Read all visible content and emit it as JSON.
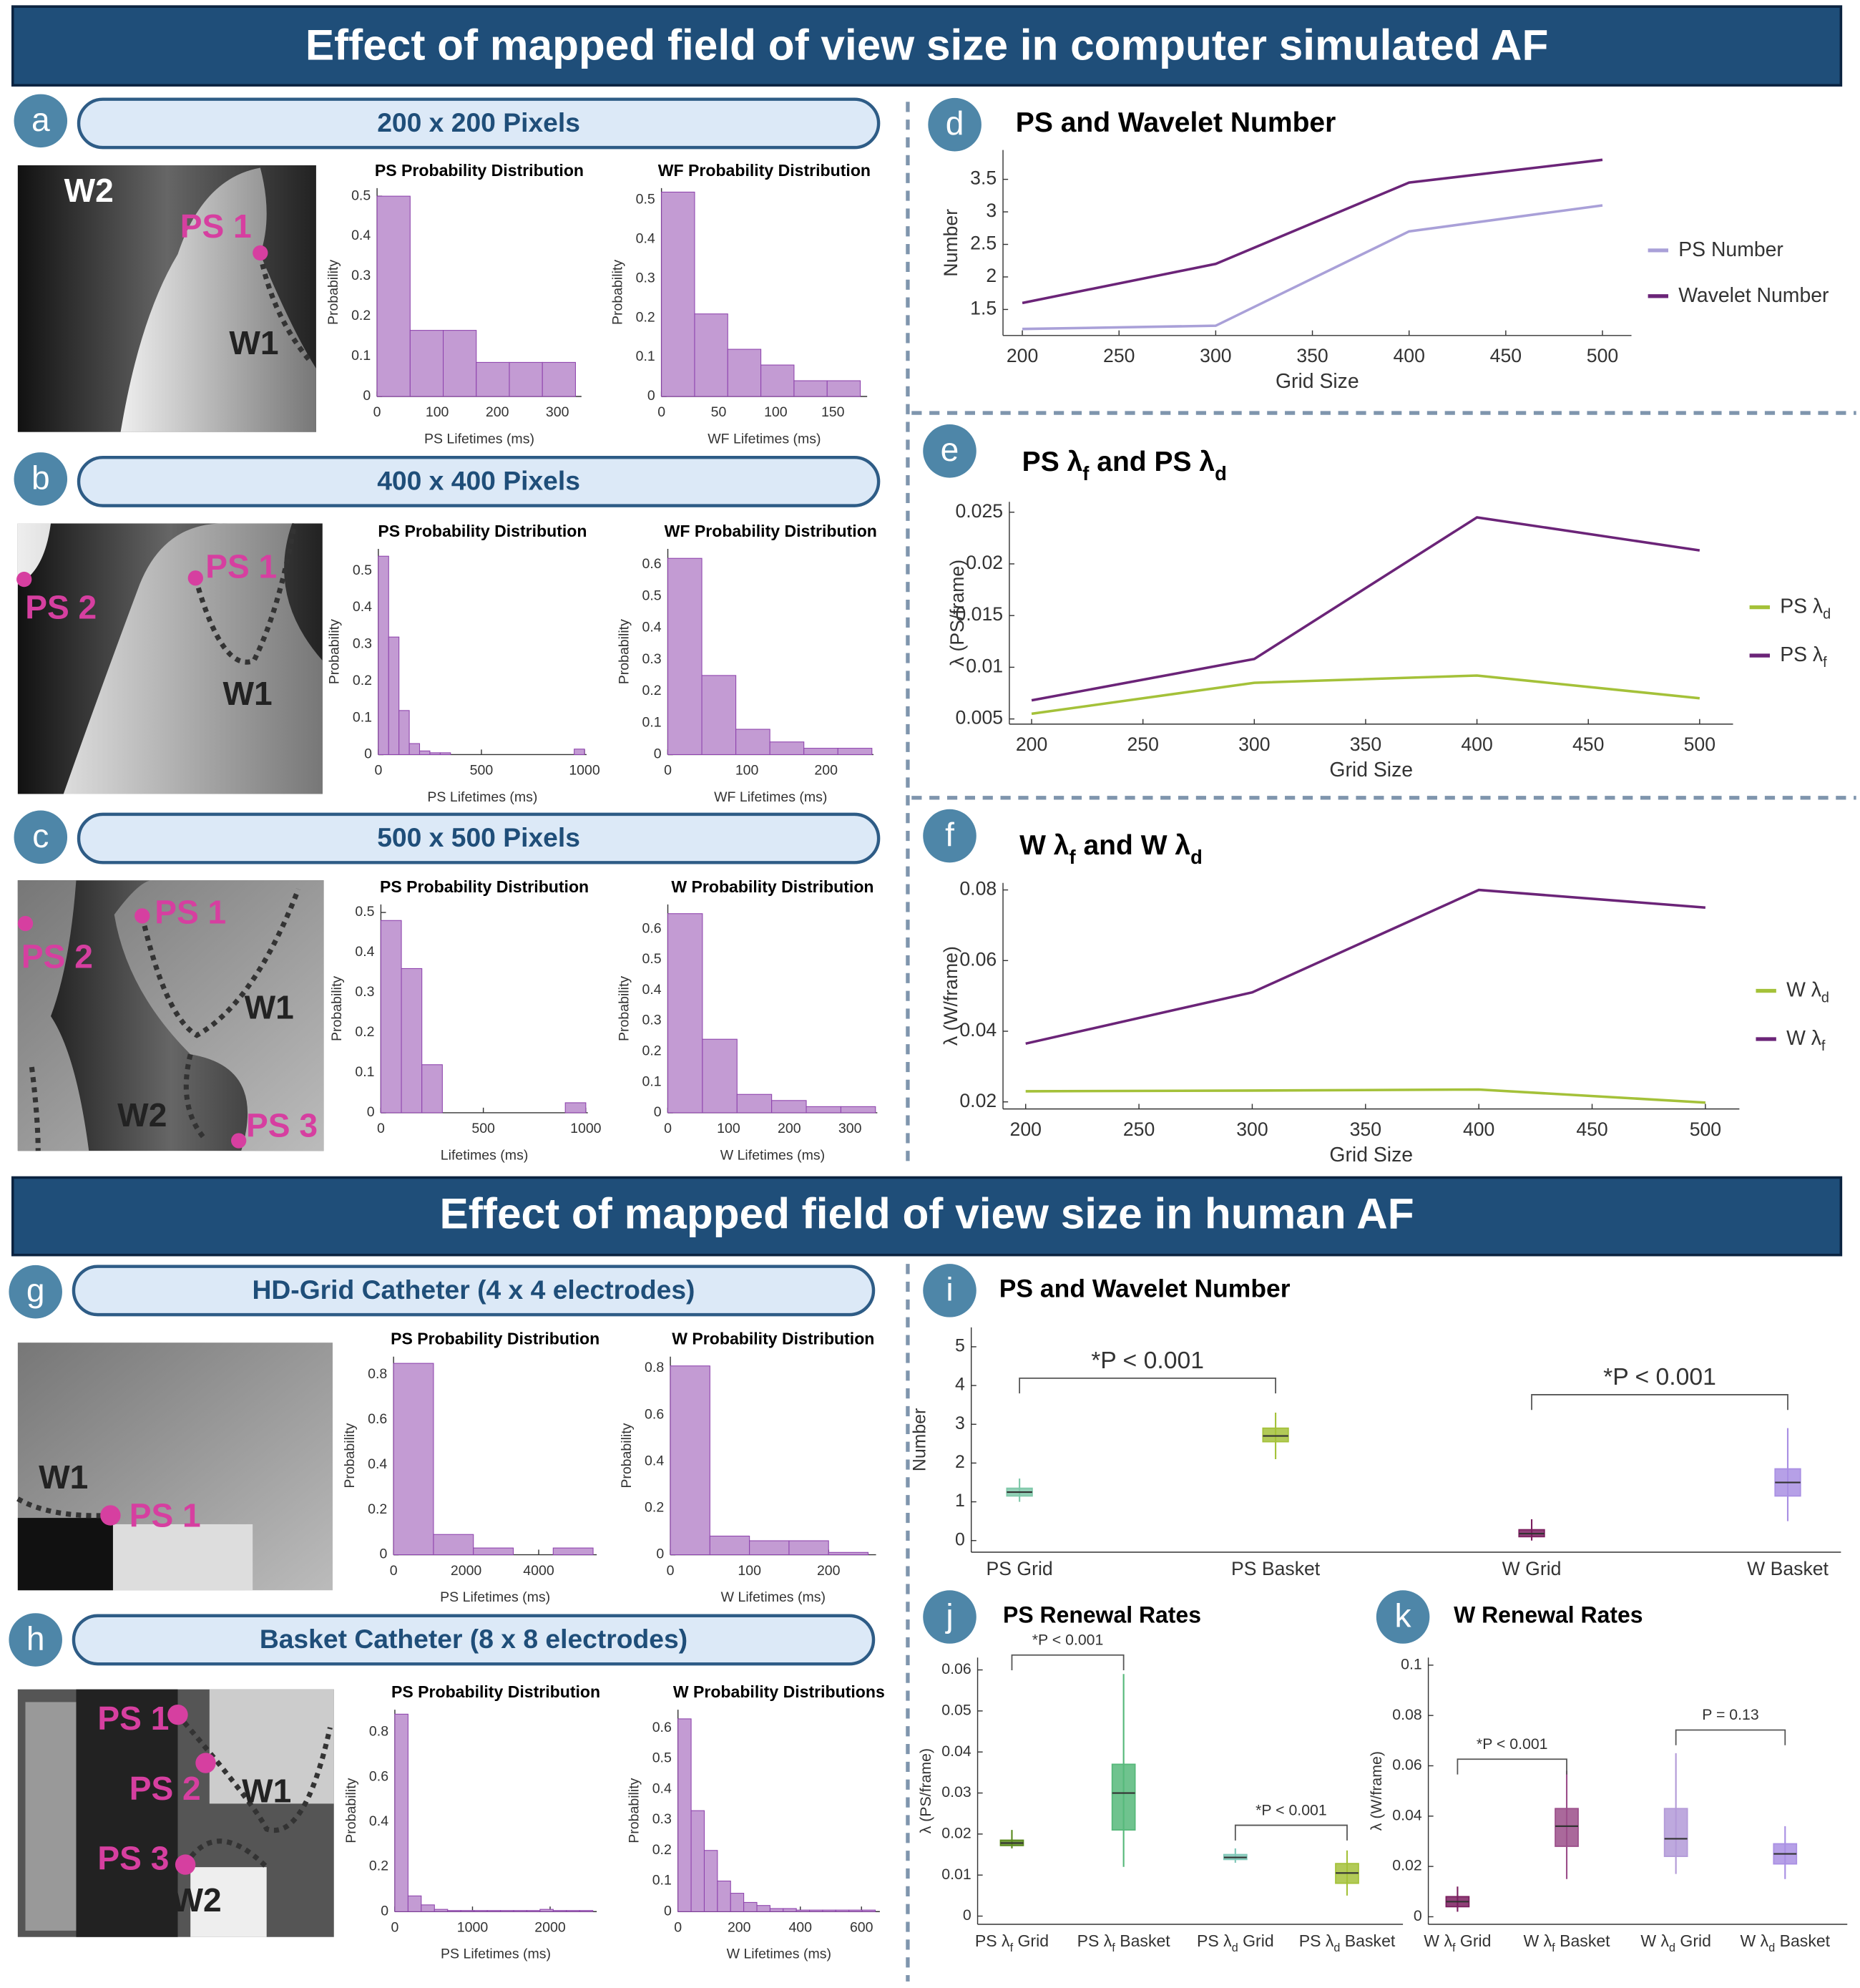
{
  "banners": [
    "Effect of mapped field of view size in computer simulated AF",
    "Effect of mapped field of view size in human AF"
  ],
  "panels": [
    {
      "letter": "a",
      "heading": "200 x 200 Pixels",
      "labels": [
        "W2",
        "PS 1",
        "W1"
      ]
    },
    {
      "letter": "b",
      "heading": "400 x 400 Pixels",
      "labels": [
        "PS 1",
        "PS 2",
        "W1"
      ]
    },
    {
      "letter": "c",
      "heading": "500 x 500 Pixels",
      "labels": [
        "PS 1",
        "PS 2",
        "W1",
        "W2",
        "PS 3"
      ]
    },
    {
      "letter": "d"
    },
    {
      "letter": "e"
    },
    {
      "letter": "f"
    },
    {
      "letter": "g",
      "heading": "HD-Grid Catheter (4 x 4 electrodes)",
      "labels": [
        "W1",
        "PS 1"
      ]
    },
    {
      "letter": "h",
      "heading": "Basket Catheter (8 x 8 electrodes)",
      "labels": [
        "PS 1",
        "PS 2",
        "W1",
        "PS 3",
        "W2"
      ]
    },
    {
      "letter": "i"
    },
    {
      "letter": "j"
    },
    {
      "letter": "k"
    }
  ],
  "chart_data": [
    {
      "type": "histogram",
      "title": "PS Probability Distribution",
      "xlabel": "PS Lifetimes (ms)",
      "ylabel": "Probability",
      "bins": [
        0,
        55,
        110,
        165,
        220,
        275,
        330
      ],
      "values": [
        0.5,
        0.165,
        0.165,
        0.085,
        0.085,
        0.085
      ],
      "color": "#c39bd3",
      "xlim": [
        0,
        340
      ],
      "xticks": [
        0,
        100,
        200,
        300
      ],
      "ylim": [
        0,
        0.52
      ],
      "yticks": [
        0,
        0.1,
        0.2,
        0.3,
        0.4,
        0.5
      ]
    },
    {
      "type": "histogram",
      "title": "WF Probability Distribution",
      "xlabel": "WF Lifetimes (ms)",
      "ylabel": "Probability",
      "bins": [
        0,
        29,
        58,
        87,
        116,
        145,
        174
      ],
      "values": [
        0.52,
        0.21,
        0.12,
        0.08,
        0.04,
        0.04
      ],
      "color": "#c39bd3",
      "xlim": [
        0,
        180
      ],
      "xticks": [
        0,
        50,
        100,
        150
      ],
      "ylim": [
        0,
        0.53
      ],
      "yticks": [
        0,
        0.1,
        0.2,
        0.3,
        0.4,
        0.5
      ]
    },
    {
      "type": "histogram",
      "title": "PS Probability Distribution",
      "xlabel": "PS Lifetimes (ms)",
      "ylabel": "Probability",
      "bins": [
        0,
        50,
        100,
        150,
        200,
        250,
        300,
        350,
        400,
        450,
        500,
        550,
        600,
        650,
        700,
        750,
        800,
        850,
        900,
        950,
        1000
      ],
      "values": [
        0.54,
        0.32,
        0.12,
        0.03,
        0.01,
        0.005,
        0.005,
        0,
        0,
        0,
        0,
        0,
        0,
        0,
        0,
        0,
        0,
        0,
        0,
        0.015
      ],
      "color": "#c39bd3",
      "xlim": [
        0,
        1010
      ],
      "xticks": [
        0,
        500,
        1000
      ],
      "ylim": [
        0,
        0.56
      ],
      "yticks": [
        0,
        0.1,
        0.2,
        0.3,
        0.4,
        0.5
      ]
    },
    {
      "type": "histogram",
      "title": "WF Probability Distribution",
      "xlabel": "WF Lifetimes (ms)",
      "ylabel": "Probability",
      "bins": [
        0,
        43,
        86,
        129,
        172,
        215,
        258
      ],
      "values": [
        0.62,
        0.25,
        0.08,
        0.04,
        0.02,
        0.02
      ],
      "color": "#c39bd3",
      "xlim": [
        0,
        260
      ],
      "xticks": [
        0,
        100,
        200
      ],
      "ylim": [
        0,
        0.65
      ],
      "yticks": [
        0,
        0.1,
        0.2,
        0.3,
        0.4,
        0.5,
        0.6
      ]
    },
    {
      "type": "histogram",
      "title": "PS Probability Distribution",
      "xlabel": "Lifetimes (ms)",
      "ylabel": "Probability",
      "bins": [
        0,
        100,
        200,
        300,
        400,
        500,
        600,
        700,
        800,
        900,
        1000
      ],
      "values": [
        0.48,
        0.36,
        0.12,
        0,
        0,
        0,
        0,
        0,
        0,
        0.025
      ],
      "color": "#c39bd3",
      "xlim": [
        0,
        1010
      ],
      "xticks": [
        0,
        500,
        1000
      ],
      "ylim": [
        0,
        0.52
      ],
      "yticks": [
        0,
        0.1,
        0.2,
        0.3,
        0.4,
        0.5
      ]
    },
    {
      "type": "histogram",
      "title": "W Probability Distribution",
      "xlabel": "W Lifetimes (ms)",
      "ylabel": "Probability",
      "bins": [
        0,
        57,
        114,
        171,
        228,
        285,
        342
      ],
      "values": [
        0.65,
        0.24,
        0.06,
        0.04,
        0.02,
        0.02
      ],
      "color": "#c39bd3",
      "xlim": [
        0,
        345
      ],
      "xticks": [
        0,
        100,
        200,
        300
      ],
      "ylim": [
        0,
        0.68
      ],
      "yticks": [
        0,
        0.1,
        0.2,
        0.3,
        0.4,
        0.5,
        0.6
      ]
    },
    {
      "type": "histogram",
      "title": "PS Probability Distribution",
      "xlabel": "PS Lifetimes (ms)",
      "ylabel": "Probability",
      "bins": [
        0,
        1100,
        2200,
        3300,
        4400,
        5500
      ],
      "values": [
        0.85,
        0.09,
        0.03,
        0,
        0.03
      ],
      "color": "#c39bd3",
      "xlim": [
        0,
        5600
      ],
      "xticks": [
        0,
        2000,
        4000
      ],
      "ylim": [
        0,
        0.88
      ],
      "yticks": [
        0,
        0.2,
        0.4,
        0.6,
        0.8
      ]
    },
    {
      "type": "histogram",
      "title": "W Probability Distribution",
      "xlabel": "W Lifetimes (ms)",
      "ylabel": "Probability",
      "bins": [
        0,
        50,
        100,
        150,
        200,
        250
      ],
      "values": [
        0.81,
        0.08,
        0.06,
        0.06,
        0.01
      ],
      "color": "#c39bd3",
      "xlim": [
        0,
        260
      ],
      "xticks": [
        0,
        100,
        200
      ],
      "ylim": [
        0,
        0.85
      ],
      "yticks": [
        0,
        0.2,
        0.4,
        0.6,
        0.8
      ]
    },
    {
      "type": "histogram",
      "title": "PS Probability Distribution",
      "xlabel": "PS Lifetimes (ms)",
      "ylabel": "Probability",
      "bins": [
        0,
        170,
        340,
        510,
        680,
        850,
        1020,
        1190,
        1360,
        1530,
        1700,
        1870,
        2040,
        2210,
        2380,
        2550
      ],
      "values": [
        0.88,
        0.07,
        0.03,
        0.01,
        0.005,
        0.005,
        0.005,
        0.005,
        0.005,
        0.005,
        0.005,
        0.01,
        0.005,
        0.005,
        0.005
      ],
      "color": "#c39bd3",
      "xlim": [
        0,
        2600
      ],
      "xticks": [
        0,
        1000,
        2000
      ],
      "ylim": [
        0,
        0.9
      ],
      "yticks": [
        0,
        0.2,
        0.4,
        0.6,
        0.8
      ]
    },
    {
      "type": "histogram",
      "title": "W Probability Distributions",
      "xlabel": "W Lifetimes (ms)",
      "ylabel": "Probability",
      "bins": [
        0,
        43,
        86,
        129,
        172,
        215,
        258,
        301,
        344,
        387,
        430,
        473,
        516,
        559,
        602,
        645
      ],
      "values": [
        0.63,
        0.33,
        0.2,
        0.1,
        0.06,
        0.03,
        0.02,
        0.01,
        0.01,
        0.005,
        0.005,
        0.005,
        0.005,
        0.005,
        0.005
      ],
      "color": "#c39bd3",
      "xlim": [
        0,
        660
      ],
      "xticks": [
        0,
        200,
        400,
        600
      ],
      "ylim": [
        0,
        0.66
      ],
      "yticks": [
        0,
        0.1,
        0.2,
        0.3,
        0.4,
        0.5,
        0.6
      ]
    },
    {
      "type": "line",
      "title": [
        "PS and Wavelet Number"
      ],
      "xlabel": "Grid Size",
      "ylabel": "Number",
      "x": [
        200,
        300,
        400,
        500
      ],
      "series": [
        {
          "name": [
            "PS Number"
          ],
          "color": "#a9a0d8",
          "values": [
            1.2,
            1.25,
            2.7,
            3.1
          ]
        },
        {
          "name": [
            "Wavelet Number"
          ],
          "color": "#6b2478",
          "values": [
            1.6,
            2.2,
            3.45,
            3.8
          ]
        }
      ],
      "xlim": [
        190,
        515
      ],
      "xticks": [
        200,
        250,
        300,
        350,
        400,
        450,
        500
      ],
      "ylim": [
        1.1,
        3.95
      ],
      "yticks": [
        1.5,
        2,
        2.5,
        3,
        3.5
      ]
    },
    {
      "type": "line",
      "title": [
        "PS λ",
        "f",
        " and PS λ",
        "d"
      ],
      "xlabel": "Grid Size",
      "ylabel": "λ (PS/frame)",
      "x": [
        200,
        300,
        400,
        500
      ],
      "series": [
        {
          "name": [
            "PS λ",
            "d"
          ],
          "color": "#a4c139",
          "values": [
            0.0055,
            0.0085,
            0.0092,
            0.007
          ]
        },
        {
          "name": [
            "PS λ",
            "f"
          ],
          "color": "#6b2478",
          "values": [
            0.0068,
            0.0108,
            0.0245,
            0.0213
          ]
        }
      ],
      "xlim": [
        190,
        515
      ],
      "xticks": [
        200,
        250,
        300,
        350,
        400,
        450,
        500
      ],
      "ylim": [
        0.0045,
        0.026
      ],
      "yticks": [
        0.005,
        0.01,
        0.015,
        0.02,
        0.025
      ]
    },
    {
      "type": "line",
      "title": [
        "W λ",
        "f",
        " and W λ",
        "d"
      ],
      "xlabel": "Grid Size",
      "ylabel": "λ (W/frame)",
      "x": [
        200,
        300,
        400,
        500
      ],
      "series": [
        {
          "name": [
            "W λ",
            "d"
          ],
          "color": "#a4c139",
          "values": [
            0.023,
            0.0232,
            0.0235,
            0.0198
          ]
        },
        {
          "name": [
            "W λ",
            "f"
          ],
          "color": "#6b2478",
          "values": [
            0.0365,
            0.051,
            0.08,
            0.075
          ]
        }
      ],
      "xlim": [
        190,
        515
      ],
      "xticks": [
        200,
        250,
        300,
        350,
        400,
        450,
        500
      ],
      "ylim": [
        0.018,
        0.082
      ],
      "yticks": [
        0.02,
        0.04,
        0.06,
        0.08
      ]
    },
    {
      "type": "box",
      "title": [
        "PS and Wavelet Number"
      ],
      "ylabel": "Number",
      "categories": [
        [
          "PS Grid"
        ],
        [
          "PS Basket"
        ],
        [
          "W Grid"
        ],
        [
          "W Basket"
        ]
      ],
      "boxes": [
        {
          "min": 1.0,
          "q1": 1.15,
          "median": 1.25,
          "q3": 1.35,
          "max": 1.6
        },
        {
          "min": 2.1,
          "q1": 2.55,
          "median": 2.7,
          "q3": 2.9,
          "max": 3.3
        },
        {
          "min": 0,
          "q1": 0.1,
          "median": 0.18,
          "q3": 0.28,
          "max": 0.55
        },
        {
          "min": 0.5,
          "q1": 1.15,
          "median": 1.5,
          "q3": 1.85,
          "max": 2.9
        }
      ],
      "colors": [
        "#7fc8a9",
        "#a4c139",
        "#7b1f5f",
        "#a98fe3"
      ],
      "annotations": [
        "*P < 0.001",
        "*P < 0.001"
      ],
      "ylim": [
        -0.3,
        5.5
      ],
      "yticks": [
        0,
        1,
        2,
        3,
        4,
        5
      ]
    },
    {
      "type": "box",
      "title": [
        "PS Renewal Rates"
      ],
      "ylabel": "λ (PS/frame)",
      "categories": [
        [
          "PS λ",
          "f",
          " Grid"
        ],
        [
          "PS λ",
          "f",
          " Basket"
        ],
        [
          "PS λ",
          "d",
          " Grid"
        ],
        [
          "PS λ",
          "d",
          " Basket"
        ]
      ],
      "boxes": [
        {
          "min": 0.0165,
          "q1": 0.0172,
          "median": 0.0178,
          "q3": 0.0185,
          "max": 0.021
        },
        {
          "min": 0.012,
          "q1": 0.021,
          "median": 0.03,
          "q3": 0.037,
          "max": 0.059
        },
        {
          "min": 0.013,
          "q1": 0.0138,
          "median": 0.0143,
          "q3": 0.015,
          "max": 0.0165
        },
        {
          "min": 0.005,
          "q1": 0.008,
          "median": 0.0105,
          "q3": 0.0128,
          "max": 0.016
        }
      ],
      "colors": [
        "#5a8a1e",
        "#56b87a",
        "#7fc8b8",
        "#a4c139"
      ],
      "annotations": [
        "*P < 0.001",
        "*P < 0.001"
      ],
      "ylim": [
        -0.002,
        0.063
      ],
      "yticks": [
        0,
        0.01,
        0.02,
        0.03,
        0.04,
        0.05,
        0.06
      ]
    },
    {
      "type": "box",
      "title": [
        "W Renewal Rates"
      ],
      "ylabel": "λ (W/frame)",
      "categories": [
        [
          "W λ",
          "f",
          " Grid"
        ],
        [
          "W λ",
          "f",
          " Basket"
        ],
        [
          "W λ",
          "d",
          " Grid"
        ],
        [
          "W λ",
          "d",
          " Basket"
        ]
      ],
      "boxes": [
        {
          "min": 0.002,
          "q1": 0.004,
          "median": 0.006,
          "q3": 0.008,
          "max": 0.012
        },
        {
          "min": 0.015,
          "q1": 0.028,
          "median": 0.036,
          "q3": 0.043,
          "max": 0.058
        },
        {
          "min": 0.017,
          "q1": 0.024,
          "median": 0.031,
          "q3": 0.043,
          "max": 0.065
        },
        {
          "min": 0.015,
          "q1": 0.021,
          "median": 0.025,
          "q3": 0.029,
          "max": 0.036
        }
      ],
      "colors": [
        "#7b1f5f",
        "#9b4f8a",
        "#b39ad8",
        "#a98fe3"
      ],
      "annotations": [
        "*P < 0.001",
        "P = 0.13"
      ],
      "ylim": [
        -0.003,
        0.103
      ],
      "yticks": [
        0,
        0.02,
        0.04,
        0.06,
        0.08,
        0.1
      ]
    }
  ]
}
